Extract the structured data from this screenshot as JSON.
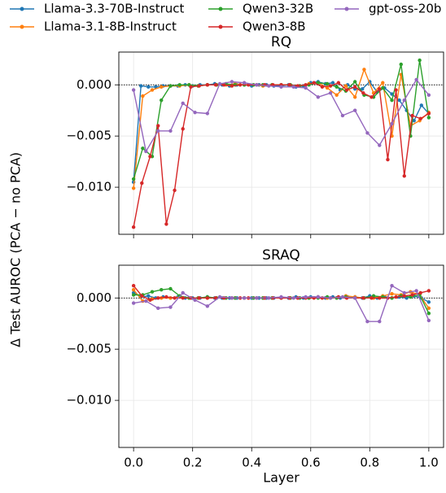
{
  "chart_data": [
    {
      "type": "line",
      "title": "RQ",
      "ylabel": "Δ Test AUROC (PCA − no PCA)",
      "xlim": [
        -0.05,
        1.05
      ],
      "xticks": [
        0,
        0.2,
        0.4,
        0.6,
        0.8,
        1
      ],
      "ylim": [
        -0.0146,
        0.0032
      ],
      "yticks": [
        {
          "value": 0,
          "label": "0.000"
        },
        {
          "value": -0.005,
          "label": "−0.005"
        },
        {
          "value": -0.01,
          "label": "−0.010"
        }
      ],
      "grid": true,
      "reference_line": 0,
      "legend": "top",
      "series": [
        {
          "name": "Llama-3.3-70B-Instruct",
          "color": "#1f77b4",
          "x": [
            0,
            0.025,
            0.05,
            0.075,
            0.1,
            0.125,
            0.15,
            0.175,
            0.2,
            0.225,
            0.25,
            0.275,
            0.3,
            0.325,
            0.35,
            0.375,
            0.4,
            0.425,
            0.45,
            0.475,
            0.5,
            0.525,
            0.55,
            0.575,
            0.6,
            0.625,
            0.65,
            0.675,
            0.7,
            0.725,
            0.75,
            0.775,
            0.8,
            0.825,
            0.85,
            0.875,
            0.9,
            0.925,
            0.95,
            0.975,
            1
          ],
          "values": [
            -0.0095,
            -0.0001,
            -0.0002,
            -0.0002,
            -0.0001,
            -0.0001,
            -0.0001,
            0,
            -0.0001,
            0,
            0,
            0.0001,
            0,
            -0.0001,
            0,
            0,
            -0.0001,
            0,
            0,
            -0.0001,
            -0.0001,
            0,
            -0.0002,
            -0.0001,
            0.0002,
            0.0003,
            0.0001,
            0.0002,
            -0.0005,
            0,
            -0.0004,
            -0.0004,
            0.0003,
            -0.0007,
            -0.0003,
            -0.0009,
            -0.0015,
            -0.0025,
            -0.0035,
            -0.002,
            -0.0028
          ]
        },
        {
          "name": "Llama-3.1-8B-Instruct",
          "color": "#ff7f0e",
          "x": [
            0,
            0.031,
            0.063,
            0.094,
            0.125,
            0.156,
            0.188,
            0.219,
            0.25,
            0.281,
            0.313,
            0.344,
            0.375,
            0.406,
            0.438,
            0.469,
            0.5,
            0.531,
            0.563,
            0.594,
            0.625,
            0.656,
            0.688,
            0.719,
            0.75,
            0.781,
            0.813,
            0.844,
            0.875,
            0.906,
            0.938,
            0.969,
            1
          ],
          "values": [
            -0.0101,
            -0.0011,
            -0.0005,
            -0.0002,
            -0.0001,
            -0.0001,
            0,
            -0.0001,
            0,
            0,
            0,
            0.0001,
            0,
            0,
            -0.0001,
            0,
            0,
            0,
            -0.0001,
            0.0001,
            0.0002,
            -0.0003,
            -0.001,
            -0.0001,
            -0.0012,
            0.0015,
            -0.0008,
            0.0002,
            -0.005,
            0.001,
            -0.004,
            -0.0035,
            -0.0027
          ]
        },
        {
          "name": "Qwen3-32B",
          "color": "#2ca02c",
          "x": [
            0,
            0.031,
            0.063,
            0.094,
            0.125,
            0.156,
            0.188,
            0.219,
            0.25,
            0.281,
            0.313,
            0.344,
            0.375,
            0.406,
            0.438,
            0.469,
            0.5,
            0.531,
            0.563,
            0.594,
            0.625,
            0.656,
            0.688,
            0.719,
            0.75,
            0.781,
            0.813,
            0.844,
            0.875,
            0.906,
            0.938,
            0.969,
            1
          ],
          "values": [
            -0.0092,
            -0.0062,
            -0.007,
            -0.0015,
            -0.0001,
            0,
            0,
            -0.0001,
            0,
            0,
            0.0001,
            0,
            0,
            0,
            0,
            0,
            0,
            0,
            -0.0001,
            0,
            0.0002,
            0.0001,
            -0.0002,
            -0.0006,
            0.0003,
            -0.001,
            -0.0012,
            -0.0003,
            -0.0015,
            0.002,
            -0.005,
            0.0024,
            -0.0032
          ]
        },
        {
          "name": "Qwen3-8B",
          "color": "#d62728",
          "x": [
            0,
            0.028,
            0.056,
            0.083,
            0.111,
            0.139,
            0.167,
            0.194,
            0.222,
            0.25,
            0.278,
            0.306,
            0.333,
            0.361,
            0.389,
            0.417,
            0.444,
            0.472,
            0.5,
            0.528,
            0.556,
            0.583,
            0.611,
            0.639,
            0.667,
            0.694,
            0.722,
            0.75,
            0.778,
            0.806,
            0.833,
            0.861,
            0.889,
            0.917,
            0.944,
            0.972,
            1
          ],
          "values": [
            -0.0139,
            -0.0096,
            -0.007,
            -0.004,
            -0.0136,
            -0.0103,
            -0.0043,
            -0.0002,
            -0.0001,
            0,
            0,
            0,
            -0.0001,
            0,
            0,
            0,
            0,
            0,
            0,
            0,
            -0.0001,
            0,
            0.0002,
            -0.0002,
            -0.0001,
            0.0002,
            -0.0005,
            -0.0002,
            -0.0008,
            -0.0012,
            -0.0004,
            -0.0073,
            -0.0005,
            -0.0089,
            -0.003,
            -0.0033,
            -0.0028
          ]
        },
        {
          "name": "gpt-oss-20b",
          "color": "#9467bd",
          "x": [
            0,
            0.042,
            0.083,
            0.125,
            0.167,
            0.208,
            0.25,
            0.292,
            0.333,
            0.375,
            0.417,
            0.458,
            0.5,
            0.542,
            0.583,
            0.625,
            0.667,
            0.708,
            0.75,
            0.792,
            0.833,
            0.875,
            0.917,
            0.958,
            1
          ],
          "values": [
            -0.0005,
            -0.0065,
            -0.0045,
            -0.0045,
            -0.0018,
            -0.0027,
            -0.0028,
            0.0001,
            0.0003,
            0.0002,
            0,
            -0.0001,
            -0.0002,
            -0.0002,
            -0.0003,
            -0.0012,
            -0.0008,
            -0.003,
            -0.0025,
            -0.0047,
            -0.0059,
            -0.0038,
            -0.0015,
            0.0005,
            -0.001
          ]
        }
      ]
    },
    {
      "type": "line",
      "title": "SRAQ",
      "xlabel": "Layer",
      "xlim": [
        -0.05,
        1.05
      ],
      "xticks": [
        {
          "value": 0,
          "label": "0.0"
        },
        {
          "value": 0.2,
          "label": "0.2"
        },
        {
          "value": 0.4,
          "label": "0.4"
        },
        {
          "value": 0.6,
          "label": "0.6"
        },
        {
          "value": 0.8,
          "label": "0.8"
        },
        {
          "value": 1,
          "label": "1.0"
        }
      ],
      "ylim": [
        -0.0146,
        0.0032
      ],
      "yticks": [
        {
          "value": 0,
          "label": "0.000"
        },
        {
          "value": -0.005,
          "label": "−0.005"
        },
        {
          "value": -0.01,
          "label": "−0.010"
        }
      ],
      "grid": true,
      "reference_line": 0,
      "series": [
        {
          "color": "#1f77b4",
          "x": [
            0,
            0.025,
            0.05,
            0.075,
            0.1,
            0.125,
            0.15,
            0.175,
            0.2,
            0.225,
            0.25,
            0.275,
            0.3,
            0.325,
            0.35,
            0.375,
            0.4,
            0.425,
            0.45,
            0.475,
            0.5,
            0.525,
            0.55,
            0.575,
            0.6,
            0.625,
            0.65,
            0.675,
            0.7,
            0.725,
            0.75,
            0.775,
            0.8,
            0.825,
            0.85,
            0.875,
            0.9,
            0.925,
            0.95,
            0.975,
            1
          ],
          "values": [
            0.0005,
            0.0001,
            0.0002,
            0,
            0.0001,
            0,
            0.0001,
            0,
            0,
            0,
            0.0001,
            0,
            0,
            0,
            0,
            0,
            0,
            0,
            0,
            0,
            0,
            0,
            0.0001,
            0,
            0.0001,
            0.0001,
            0,
            0.0001,
            0,
            0.0001,
            0.0001,
            0,
            0.0002,
            0,
            0.0001,
            0,
            0.0001,
            0,
            0.0002,
            0,
            -0.0004
          ]
        },
        {
          "color": "#ff7f0e",
          "x": [
            0,
            0.031,
            0.063,
            0.094,
            0.125,
            0.156,
            0.188,
            0.219,
            0.25,
            0.281,
            0.313,
            0.344,
            0.375,
            0.406,
            0.438,
            0.469,
            0.5,
            0.531,
            0.563,
            0.594,
            0.625,
            0.656,
            0.688,
            0.719,
            0.75,
            0.781,
            0.813,
            0.844,
            0.875,
            0.906,
            0.938,
            0.969,
            1
          ],
          "values": [
            0.0008,
            -0.0003,
            -0.0001,
            0,
            0,
            0.0001,
            0,
            0,
            0,
            0,
            0,
            0,
            0,
            0,
            0,
            0,
            0,
            0,
            0,
            0,
            0.0001,
            0,
            0,
            0.0002,
            0.0001,
            0,
            0,
            0.0002,
            0.0004,
            0.0003,
            0.0006,
            0.0003,
            -0.001
          ]
        },
        {
          "color": "#2ca02c",
          "x": [
            0,
            0.031,
            0.063,
            0.094,
            0.125,
            0.156,
            0.188,
            0.219,
            0.25,
            0.281,
            0.313,
            0.344,
            0.375,
            0.406,
            0.438,
            0.469,
            0.5,
            0.531,
            0.563,
            0.594,
            0.625,
            0.656,
            0.688,
            0.719,
            0.75,
            0.781,
            0.813,
            0.844,
            0.875,
            0.906,
            0.938,
            0.969,
            1
          ],
          "values": [
            0.0003,
            0.0003,
            0.0006,
            0.0008,
            0.0009,
            0.0002,
            0,
            0,
            0.0001,
            0,
            0,
            0,
            0,
            0,
            0,
            0,
            0,
            0,
            0,
            0,
            0,
            0.0001,
            0,
            0.0001,
            0,
            0,
            0.0002,
            0.0001,
            0,
            0.0002,
            0.0001,
            0.0003,
            -0.0015
          ]
        },
        {
          "color": "#d62728",
          "x": [
            0,
            0.028,
            0.056,
            0.083,
            0.111,
            0.139,
            0.167,
            0.194,
            0.222,
            0.25,
            0.278,
            0.306,
            0.333,
            0.361,
            0.389,
            0.417,
            0.444,
            0.472,
            0.5,
            0.528,
            0.556,
            0.583,
            0.611,
            0.639,
            0.667,
            0.694,
            0.722,
            0.75,
            0.778,
            0.806,
            0.833,
            0.861,
            0.889,
            0.917,
            0.944,
            0.972,
            1
          ],
          "values": [
            0.0012,
            0.0002,
            -0.0002,
            0,
            0.0001,
            0,
            0,
            0,
            0,
            0,
            0,
            0,
            0,
            0,
            0,
            0,
            0,
            0,
            0,
            0,
            0,
            0,
            0,
            0,
            0,
            0.0001,
            0,
            0,
            0,
            0,
            0,
            0,
            0.0001,
            0.0002,
            0.0003,
            0.0005,
            0.0007
          ]
        },
        {
          "color": "#9467bd",
          "x": [
            0,
            0.042,
            0.083,
            0.125,
            0.167,
            0.208,
            0.25,
            0.292,
            0.333,
            0.375,
            0.417,
            0.458,
            0.5,
            0.542,
            0.583,
            0.625,
            0.667,
            0.708,
            0.75,
            0.792,
            0.833,
            0.875,
            0.917,
            0.958,
            1
          ],
          "values": [
            -0.0005,
            -0.0003,
            -0.001,
            -0.0009,
            0.0005,
            -0.0002,
            -0.0008,
            0.0001,
            0,
            0,
            0,
            0,
            0.0001,
            0,
            0.0001,
            0.0001,
            0,
            0.0001,
            0,
            -0.0023,
            -0.0023,
            0.0012,
            0.0005,
            0.0007,
            -0.0022
          ]
        }
      ]
    }
  ]
}
